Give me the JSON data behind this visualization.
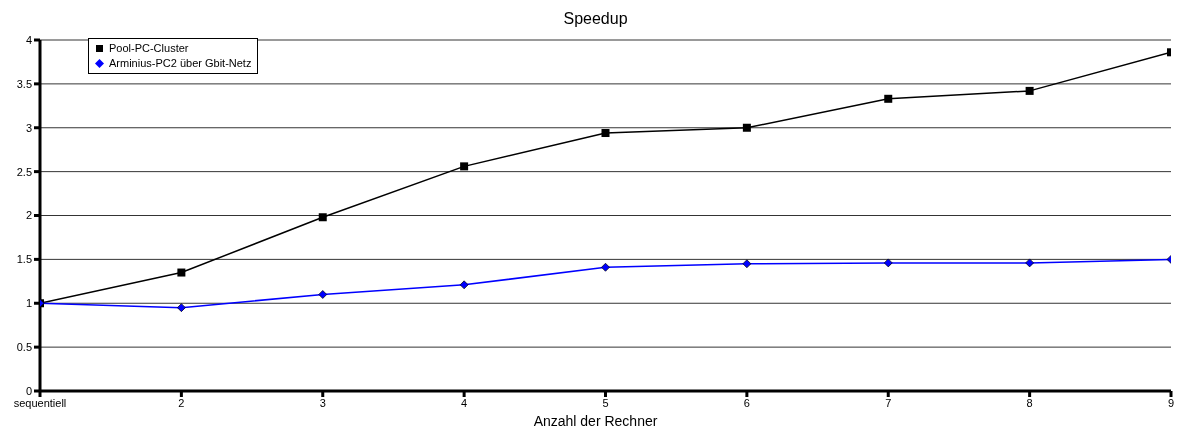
{
  "chart_data": {
    "type": "line",
    "title": "Speedup",
    "xlabel": "Anzahl der Rechner",
    "categories": [
      "sequentiell",
      "2",
      "3",
      "4",
      "5",
      "6",
      "7",
      "8",
      "9"
    ],
    "series": [
      {
        "name": "Pool-PC-Cluster",
        "color": "#000000",
        "marker": "square",
        "values": [
          1.0,
          1.35,
          1.98,
          2.56,
          2.94,
          3.0,
          3.33,
          3.42,
          3.86
        ]
      },
      {
        "name": "Arminius-PC2 über Gbit-Netz",
        "color": "#0000ff",
        "marker": "diamond",
        "values": [
          1.0,
          0.95,
          1.1,
          1.21,
          1.41,
          1.45,
          1.46,
          1.46,
          1.5
        ]
      }
    ],
    "ylim": [
      0,
      4
    ],
    "yticks": [
      0,
      0.5,
      1,
      1.5,
      2,
      2.5,
      3,
      3.5,
      4
    ],
    "grid": "y",
    "legend": "top left"
  }
}
